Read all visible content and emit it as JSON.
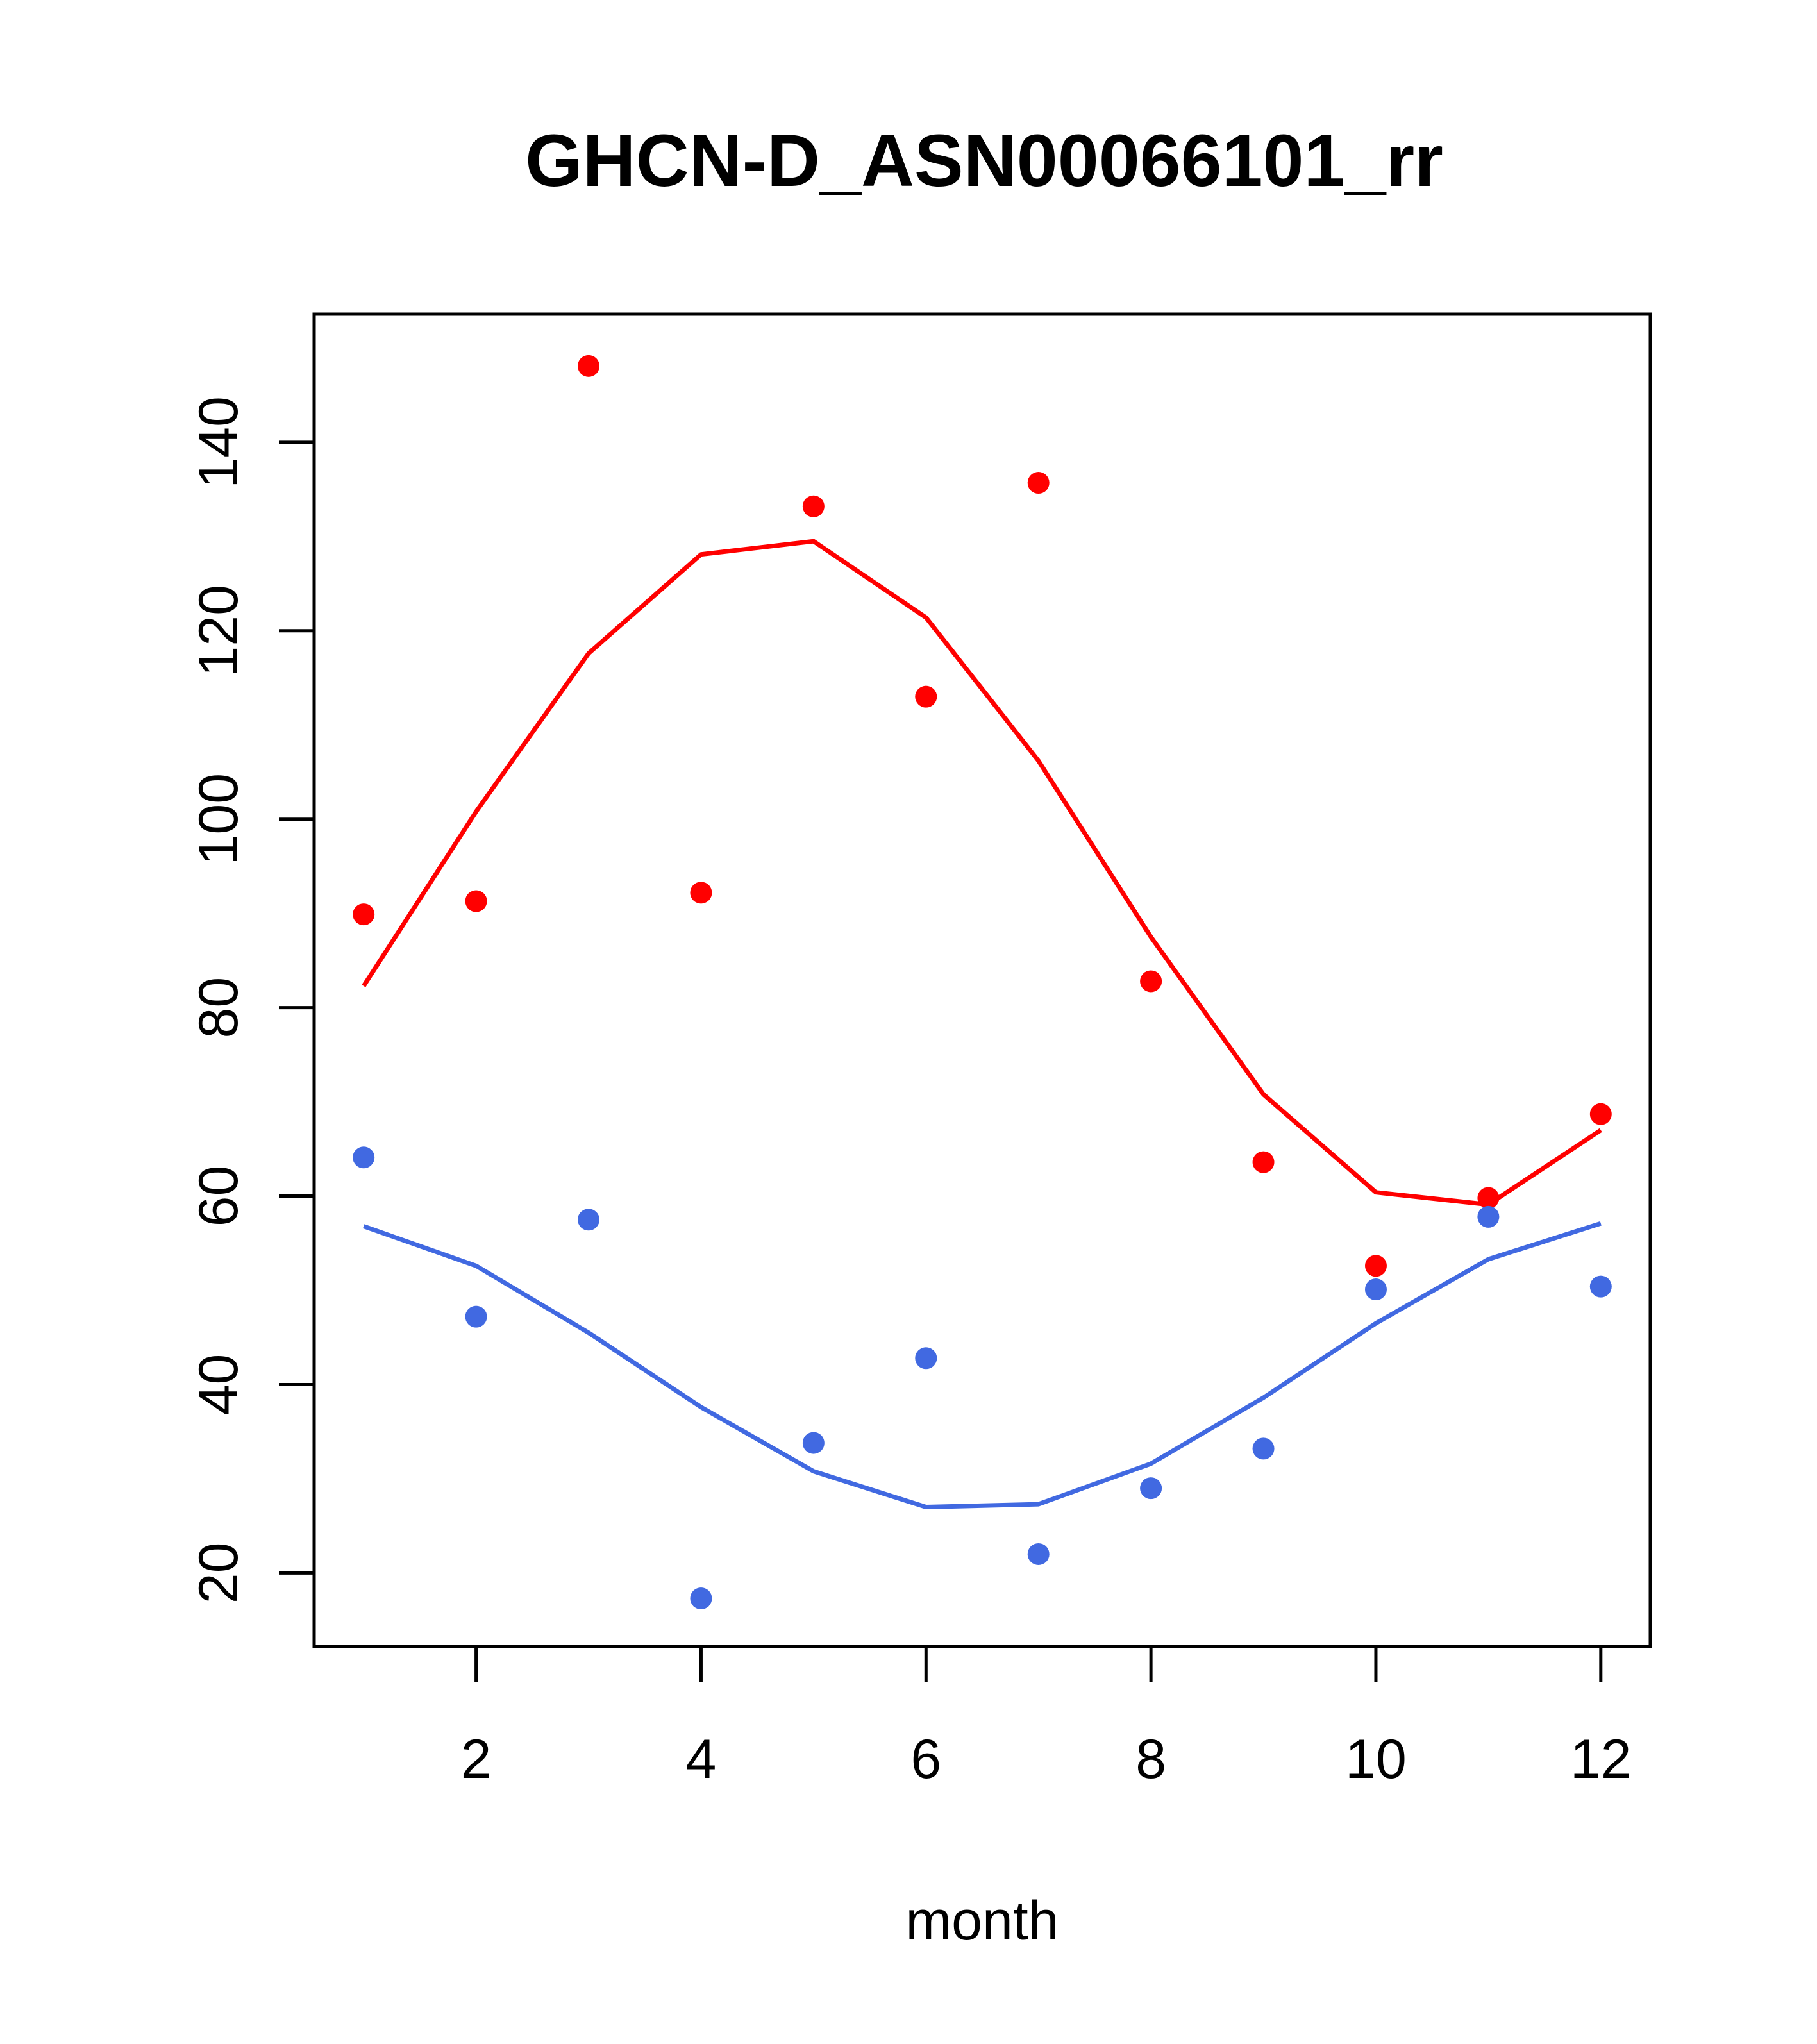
{
  "chart_data": {
    "type": "scatter",
    "title": "GHCN-D_ASN00066101_rr",
    "xlabel": "month",
    "ylabel": "",
    "xlim": [
      0.56,
      12.44
    ],
    "ylim": [
      12.2,
      153.6
    ],
    "x_ticks": [
      2,
      4,
      6,
      8,
      10,
      12
    ],
    "y_ticks": [
      20,
      40,
      60,
      80,
      100,
      120,
      140
    ],
    "grid": false,
    "legend": "none",
    "x": [
      1,
      2,
      3,
      4,
      5,
      6,
      7,
      8,
      9,
      10,
      11,
      12
    ],
    "series": [
      {
        "color": "#ff0000",
        "points": [
          89.9,
          91.3,
          148.1,
          92.2,
          133.2,
          113.0,
          135.7,
          82.8,
          63.6,
          52.6,
          59.8,
          68.7
        ],
        "line": [
          82.3,
          100.8,
          117.6,
          128.1,
          129.5,
          121.4,
          106.2,
          87.5,
          70.8,
          60.4,
          59.1,
          67.0
        ]
      },
      {
        "color": "#4169e1",
        "points": [
          64.1,
          47.2,
          57.5,
          17.3,
          33.8,
          42.8,
          22.0,
          29.0,
          33.2,
          50.1,
          57.8,
          50.4
        ],
        "line": [
          56.8,
          52.6,
          45.5,
          37.6,
          30.8,
          27.0,
          27.3,
          31.6,
          38.6,
          46.5,
          53.3,
          57.1
        ]
      }
    ]
  }
}
